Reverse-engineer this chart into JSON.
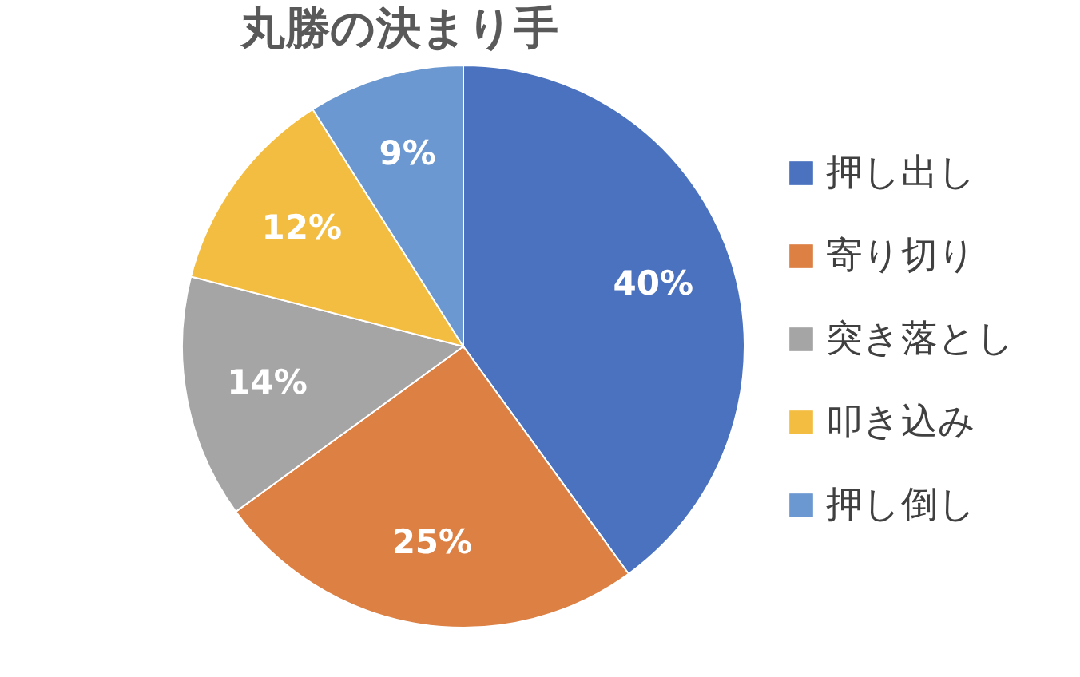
{
  "chart_data": {
    "type": "pie",
    "title": "丸勝の決まり手",
    "categories": [
      "押し出し",
      "寄り切り",
      "突き落とし",
      "叩き込み",
      "押し倒し"
    ],
    "values": [
      40,
      25,
      14,
      12,
      9
    ],
    "colors": [
      "#4a72bf",
      "#dc8044",
      "#a5a5a5",
      "#f3bd42",
      "#6b98d0"
    ],
    "value_labels": [
      "40%",
      "25%",
      "14%",
      "12%",
      "9%"
    ],
    "legend": "right"
  }
}
